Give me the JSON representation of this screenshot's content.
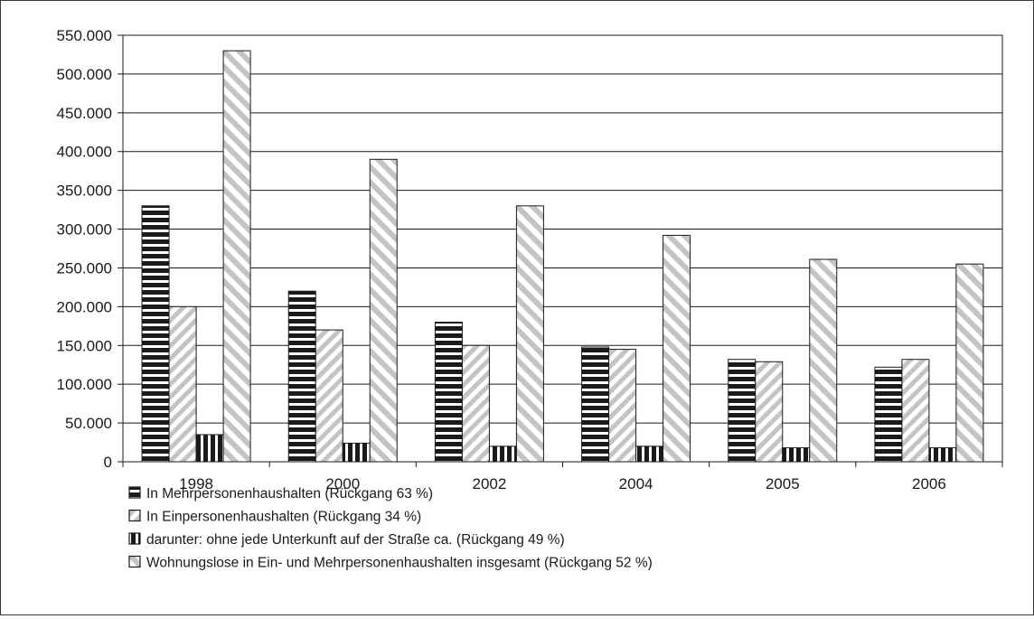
{
  "chart_data": {
    "type": "bar",
    "title": "",
    "xlabel": "",
    "ylabel": "",
    "ylim": [
      0,
      550000
    ],
    "yticks": [
      "0",
      "50.000",
      "100.000",
      "150.000",
      "200.000",
      "250.000",
      "300.000",
      "350.000",
      "400.000",
      "450.000",
      "500.000",
      "550.000"
    ],
    "grid": true,
    "legend_position": "bottom-left",
    "categories": [
      "1998",
      "2000",
      "2002",
      "2004",
      "2005",
      "2006"
    ],
    "series": [
      {
        "name": "In Mehrpersonenhaushalten (Rückgang 63 %)",
        "pattern": "horizontal-stripes",
        "values": [
          330000,
          220000,
          180000,
          148000,
          132000,
          122000
        ]
      },
      {
        "name": "In Einpersonenhaushalten (Rückgang 34 %)",
        "pattern": "diagonal-light",
        "values": [
          200000,
          170000,
          150000,
          145000,
          129000,
          132000
        ]
      },
      {
        "name": "darunter: ohne jede Unterkunft auf der Straße ca. (Rückgang 49 %)",
        "pattern": "vertical-stripes",
        "values": [
          35000,
          24000,
          20000,
          20000,
          18000,
          18000
        ]
      },
      {
        "name": "Wohnungslose in Ein- und Mehrpersonenhaushalten insgesamt (Rückgang 52 %)",
        "pattern": "diagonal-wide",
        "values": [
          530000,
          390000,
          330000,
          292000,
          261000,
          255000
        ]
      }
    ],
    "colors": {
      "dark": "#1a1a1a",
      "light_fill": "#bfbfbf",
      "grid": "#1a1a1a"
    }
  }
}
